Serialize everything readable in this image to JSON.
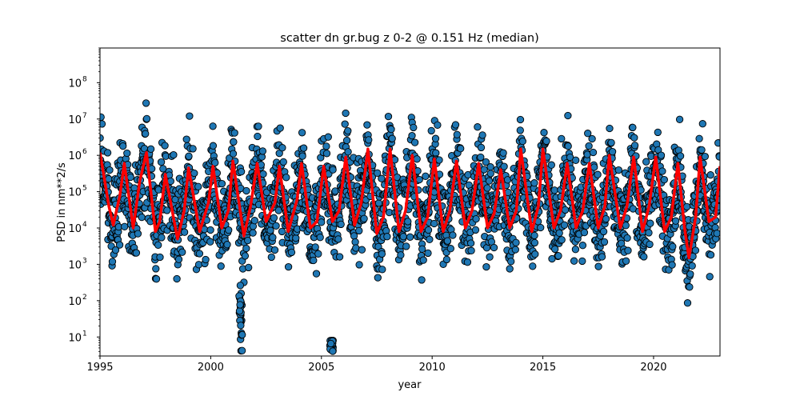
{
  "chart_data": {
    "type": "scatter",
    "title": "scatter dn gr.bug z 0-2 @ 0.151 Hz (median)",
    "xlabel": "year",
    "ylabel": "PSD in nm**2/s",
    "xlim": [
      1995,
      2023
    ],
    "ylim": [
      3,
      900000000
    ],
    "yscale": "log",
    "grid": false,
    "xticks": [
      1995,
      2000,
      2005,
      2010,
      2015,
      2020
    ],
    "xtick_labels": [
      "1995",
      "2000",
      "2005",
      "2010",
      "2015",
      "2020"
    ],
    "yticks": [
      10,
      100,
      1000,
      10000,
      100000,
      1000000,
      10000000,
      100000000
    ],
    "ytick_labels": [
      {
        "base": "10",
        "exp": "1"
      },
      {
        "base": "10",
        "exp": "2"
      },
      {
        "base": "10",
        "exp": "3"
      },
      {
        "base": "10",
        "exp": "4"
      },
      {
        "base": "10",
        "exp": "5"
      },
      {
        "base": "10",
        "exp": "6"
      },
      {
        "base": "10",
        "exp": "7"
      },
      {
        "base": "10",
        "exp": "8"
      }
    ],
    "series": [
      {
        "kind": "scatter-envelope",
        "color": "#1f77b4",
        "edgecolor": "#000000",
        "annual_cycle": {
          "winter_high": 12000000,
          "summer_low": 1500
        },
        "outlier_clusters": [
          {
            "x": 2001.35,
            "y_range": [
              4,
              350
            ]
          },
          {
            "x": 2005.45,
            "y_range": [
              4,
              8
            ]
          }
        ]
      },
      {
        "kind": "line",
        "color": "#ff0000",
        "points": [
          [
            1995.0,
            1200000
          ],
          [
            1995.4,
            40000
          ],
          [
            1995.6,
            12000
          ],
          [
            1995.9,
            80000
          ],
          [
            1996.1,
            600000
          ],
          [
            1996.5,
            10000
          ],
          [
            1996.8,
            200000
          ],
          [
            1997.1,
            1200000
          ],
          [
            1997.5,
            8000
          ],
          [
            1997.7,
            15000
          ],
          [
            1997.95,
            300000
          ],
          [
            1998.5,
            5000
          ],
          [
            1998.8,
            30000
          ],
          [
            1999.0,
            450000
          ],
          [
            1999.5,
            8000
          ],
          [
            1999.9,
            50000
          ],
          [
            2000.1,
            500000
          ],
          [
            2000.5,
            10000
          ],
          [
            2000.8,
            30000
          ],
          [
            2001.0,
            700000
          ],
          [
            2001.5,
            6000
          ],
          [
            2001.8,
            40000
          ],
          [
            2002.1,
            600000
          ],
          [
            2002.5,
            15000
          ],
          [
            2002.9,
            50000
          ],
          [
            2003.1,
            500000
          ],
          [
            2003.5,
            8000
          ],
          [
            2003.9,
            60000
          ],
          [
            2004.1,
            600000
          ],
          [
            2004.5,
            10000
          ],
          [
            2004.8,
            15000
          ],
          [
            2005.1,
            500000
          ],
          [
            2005.5,
            15000
          ],
          [
            2005.8,
            30000
          ],
          [
            2006.1,
            900000
          ],
          [
            2006.5,
            12000
          ],
          [
            2006.8,
            50000
          ],
          [
            2007.1,
            1500000
          ],
          [
            2007.5,
            7000
          ],
          [
            2007.8,
            20000
          ],
          [
            2008.1,
            1500000
          ],
          [
            2008.5,
            8000
          ],
          [
            2008.8,
            30000
          ],
          [
            2009.1,
            1000000
          ],
          [
            2009.5,
            8000
          ],
          [
            2009.8,
            20000
          ],
          [
            2010.1,
            800000
          ],
          [
            2010.5,
            8000
          ],
          [
            2010.8,
            30000
          ],
          [
            2011.1,
            700000
          ],
          [
            2011.5,
            10000
          ],
          [
            2011.8,
            30000
          ],
          [
            2012.1,
            600000
          ],
          [
            2012.5,
            10000
          ],
          [
            2012.8,
            25000
          ],
          [
            2013.1,
            400000
          ],
          [
            2013.5,
            10000
          ],
          [
            2013.8,
            30000
          ],
          [
            2014.0,
            1500000
          ],
          [
            2014.5,
            8000
          ],
          [
            2014.8,
            40000
          ],
          [
            2015.0,
            1500000
          ],
          [
            2015.5,
            10000
          ],
          [
            2015.8,
            30000
          ],
          [
            2016.1,
            600000
          ],
          [
            2016.5,
            10000
          ],
          [
            2016.8,
            30000
          ],
          [
            2017.1,
            600000
          ],
          [
            2017.5,
            10000
          ],
          [
            2017.8,
            40000
          ],
          [
            2018.0,
            1000000
          ],
          [
            2018.5,
            10000
          ],
          [
            2018.8,
            40000
          ],
          [
            2019.1,
            900000
          ],
          [
            2019.5,
            8000
          ],
          [
            2019.8,
            40000
          ],
          [
            2020.1,
            900000
          ],
          [
            2020.5,
            8000
          ],
          [
            2020.8,
            20000
          ],
          [
            2021.1,
            600000
          ],
          [
            2021.4,
            10000
          ],
          [
            2021.6,
            1500
          ],
          [
            2021.9,
            20000
          ],
          [
            2022.1,
            900000
          ],
          [
            2022.5,
            15000
          ],
          [
            2022.8,
            20000
          ],
          [
            2023.0,
            500000
          ]
        ]
      }
    ]
  }
}
